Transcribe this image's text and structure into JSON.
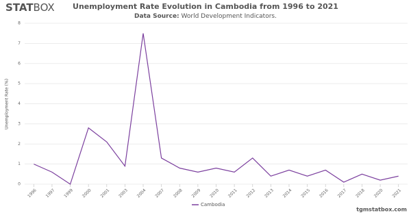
{
  "logo": {
    "bold": "STAT",
    "light": "BOX"
  },
  "footer": "tgmstatbox.com",
  "chart_data": {
    "type": "line",
    "title": "Unemployment Rate Evolution in Cambodia from 1996 to 2021",
    "subtitle_label": "Data Source:",
    "subtitle": "World Development Indicators.",
    "y_label": "Unemployment Rate (%)",
    "categories": [
      "1996",
      "1997",
      "1999",
      "2000",
      "2001",
      "2003",
      "2004",
      "2007",
      "2008",
      "2009",
      "2010",
      "2011",
      "2012",
      "2013",
      "2014",
      "2015",
      "2016",
      "2017",
      "2018",
      "2020",
      "2021"
    ],
    "series": [
      {
        "name": "Cambodia",
        "color": "#7b3f9e",
        "values": [
          1.0,
          0.6,
          0.0,
          2.8,
          2.1,
          0.9,
          7.5,
          1.3,
          0.8,
          0.6,
          0.8,
          0.6,
          1.3,
          0.4,
          0.7,
          0.4,
          0.7,
          0.1,
          0.5,
          0.2,
          0.4
        ]
      }
    ],
    "ylim": [
      0,
      8
    ],
    "yticks": [
      0,
      1,
      2,
      3,
      4,
      5,
      6,
      7,
      8
    ],
    "grid": true,
    "legend": "bottom"
  }
}
